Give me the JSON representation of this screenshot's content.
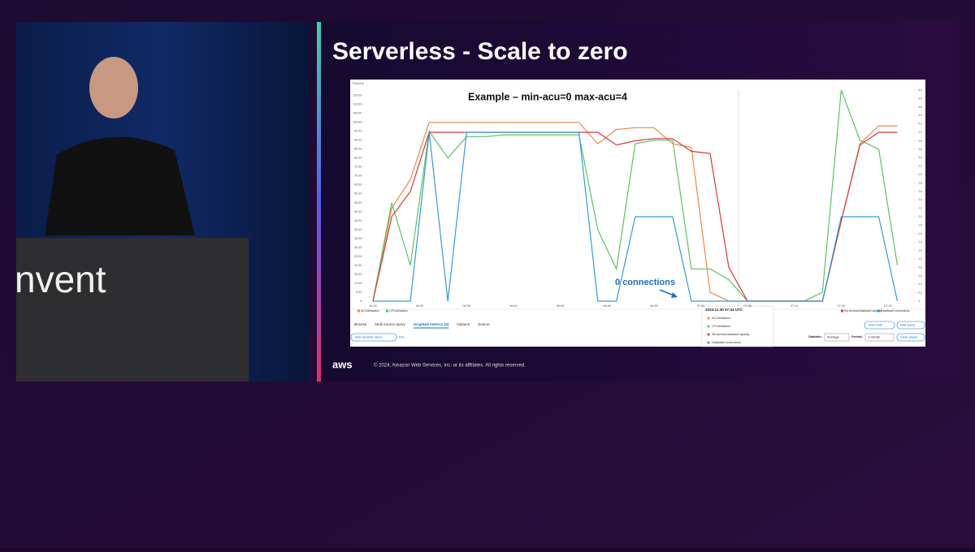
{
  "speaker": {
    "backdrop": "nvent"
  },
  "slide": {
    "title": "Serverless - Scale to zero",
    "footer": "© 2024, Amazon Web Services, Inc. or its affiliates. All rights reserved.",
    "logo": "aws",
    "tabs": [
      "Browse",
      "Multi source query",
      "Graphed metrics (4)",
      "Options",
      "Source"
    ],
    "buttons": {
      "dynamic_label": "Add dynamic label",
      "info": "Info",
      "statistic_label": "Statistic:",
      "statistic": "Average",
      "period_label": "Period:",
      "period": "1 minute",
      "add_math": "Add math",
      "add_query": "Add query",
      "clear": "Clear graph"
    },
    "tooltip": {
      "time": "2024-11-30 07:04 UTC",
      "rows": [
        "ACUUtilization",
        "CPUUtilization",
        "ServerlessDatabaseCapacity",
        "DatabaseConnections"
      ]
    }
  },
  "chart_data": {
    "type": "line",
    "subtitle": "Example – min-acu=0 max-acu=4",
    "y_label": "Percent",
    "annotation": "0 connections",
    "x": [
      "06:25",
      "06:27",
      "06:29",
      "06:31",
      "06:33",
      "06:35",
      "06:37",
      "06:39",
      "06:41",
      "06:43",
      "06:45",
      "06:47",
      "06:49",
      "06:51",
      "06:53",
      "06:55",
      "06:57",
      "06:59",
      "07:01",
      "07:03",
      "07:05",
      "07:07",
      "07:09",
      "07:11",
      "07:13",
      "07:15",
      "07:17",
      "07:19",
      "07:21"
    ],
    "xticks": [
      "06:25",
      "06:30",
      "06:35",
      "06:40",
      "06:45",
      "06:50",
      "06:55",
      "07:00",
      "07:05",
      "07:10",
      "07:15",
      "07:20"
    ],
    "ylim": [
      0,
      118
    ],
    "y2lim": [
      0,
      5
    ],
    "yticks": [
      0,
      {
        "value": 5,
        "label": "5.00"
      },
      {
        "value": 10,
        "label": "10.00"
      },
      {
        "value": 15,
        "label": "15.00"
      },
      {
        "value": 20,
        "label": "20.00"
      },
      {
        "value": 25,
        "label": "25.00"
      },
      {
        "value": 30,
        "label": "30.00"
      },
      {
        "value": 35,
        "label": "35.00"
      },
      {
        "value": 40,
        "label": "40.00"
      },
      {
        "value": 45,
        "label": "45.00"
      },
      {
        "value": 50,
        "label": "50.00"
      },
      {
        "value": 55,
        "label": "55.00"
      },
      {
        "value": 60,
        "label": "60.00"
      },
      {
        "value": 65,
        "label": "65.00"
      },
      {
        "value": 70,
        "label": "70.00"
      },
      {
        "value": 75,
        "label": "75.00"
      },
      {
        "value": 80,
        "label": "80.00"
      },
      {
        "value": 85,
        "label": "85.00"
      },
      {
        "value": 90,
        "label": "90.00"
      },
      {
        "value": 95,
        "label": "95.00"
      },
      {
        "value": 100,
        "label": "100.00"
      },
      {
        "value": 105,
        "label": "105.00"
      },
      {
        "value": 110,
        "label": "110.00"
      },
      {
        "value": 115,
        "label": "115.00"
      }
    ],
    "y2ticks": [
      0,
      0.2,
      0.4,
      0.6,
      0.8,
      {
        "value": 1,
        "label": "1.0"
      },
      1.2,
      1.4,
      1.6,
      1.8,
      {
        "value": 2,
        "label": "2.0"
      },
      2.2,
      2.4,
      2.6,
      2.8,
      {
        "value": 3,
        "label": "3.0"
      },
      3.2,
      3.4,
      3.6,
      3.8,
      {
        "value": 4,
        "label": "4.0"
      },
      4.2,
      4.4,
      4.6,
      4.8,
      {
        "value": 5,
        "label": "5.0"
      }
    ],
    "series": [
      {
        "name": "ACUUtilization",
        "color": "#f0883e",
        "values": [
          0,
          52,
          68,
          100,
          100,
          100,
          100,
          100,
          100,
          100,
          100,
          100,
          88,
          96,
          97,
          97,
          88,
          86,
          5,
          0,
          0,
          0,
          0,
          0,
          0,
          45,
          88,
          98,
          98
        ]
      },
      {
        "name": "CPUUtilization",
        "color": "#5cc45c",
        "values": [
          0,
          55,
          20,
          95,
          80,
          92,
          92,
          93,
          93,
          93,
          93,
          93,
          40,
          18,
          88,
          90,
          90,
          18,
          18,
          12,
          0,
          0,
          0,
          0,
          5,
          118,
          90,
          85,
          20
        ]
      },
      {
        "name": "ServerlessDatabaseCapacity",
        "color": "#d9363e",
        "axis": "y2",
        "values": [
          0,
          2.0,
          2.6,
          4.0,
          4.0,
          4.0,
          4.0,
          4.0,
          4.0,
          4.0,
          4.0,
          4.0,
          4.0,
          3.7,
          3.8,
          3.85,
          3.85,
          3.55,
          3.5,
          0.8,
          0,
          0,
          0,
          0,
          0,
          1.9,
          3.7,
          4.0,
          4.0
        ]
      },
      {
        "name": "DatabaseConnections",
        "color": "#2e9ed6",
        "axis": "y2",
        "values": [
          0,
          0,
          0,
          4.0,
          0,
          4.0,
          4.0,
          4.0,
          4.0,
          4.0,
          4.0,
          4.0,
          0,
          0,
          2.0,
          2.0,
          2.0,
          0,
          0,
          0,
          0,
          0,
          0,
          0,
          0,
          2.0,
          2.0,
          2.0,
          0
        ]
      }
    ]
  }
}
